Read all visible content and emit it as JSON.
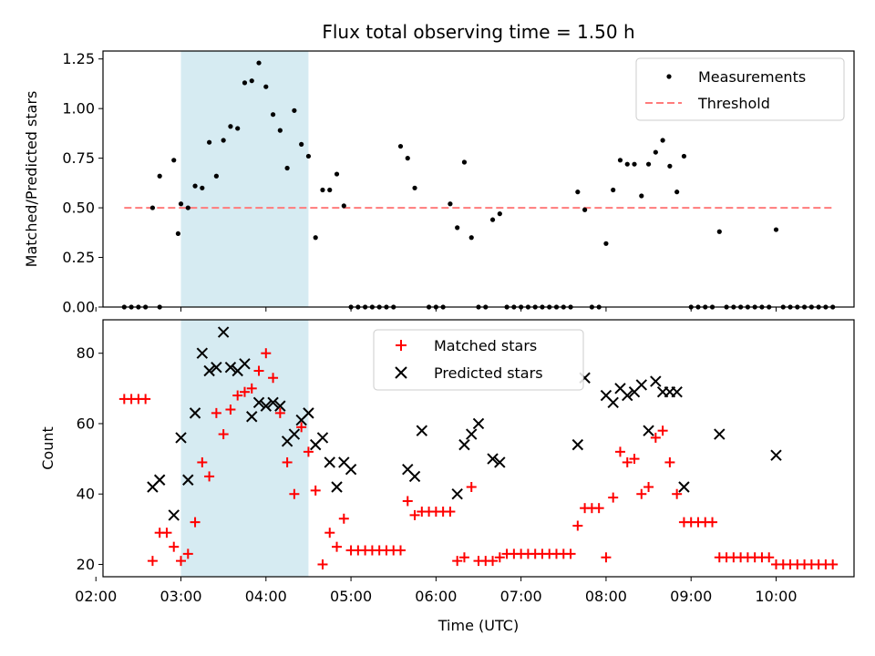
{
  "chart_data": [
    {
      "type": "scatter",
      "title": "Flux total observing time = 1.50 h",
      "xlabel": "",
      "ylabel": "Matched/Predicted stars",
      "xlim": [
        "02:05",
        "10:55"
      ],
      "ylim": [
        0,
        1.29
      ],
      "yticks": [
        "0.00",
        "0.25",
        "0.50",
        "0.75",
        "1.00",
        "1.25"
      ],
      "shaded_interval": [
        "03:00",
        "04:30"
      ],
      "legend_position": "top-right",
      "series": [
        {
          "name": "Measurements",
          "marker": "dot",
          "color": "#000000",
          "points": [
            [
              "02:20",
              0
            ],
            [
              "02:25",
              0
            ],
            [
              "02:30",
              0
            ],
            [
              "02:35",
              0
            ],
            [
              "02:45",
              0
            ],
            [
              "02:40",
              0.5
            ],
            [
              "02:45",
              0.66
            ],
            [
              "02:55",
              0.74
            ],
            [
              "02:58",
              0.37
            ],
            [
              "03:00",
              0.52
            ],
            [
              "03:05",
              0.5
            ],
            [
              "03:10",
              0.61
            ],
            [
              "03:15",
              0.6
            ],
            [
              "03:20",
              0.83
            ],
            [
              "03:25",
              0.66
            ],
            [
              "03:30",
              0.84
            ],
            [
              "03:35",
              0.91
            ],
            [
              "03:40",
              0.9
            ],
            [
              "03:45",
              1.13
            ],
            [
              "03:50",
              1.14
            ],
            [
              "03:55",
              1.23
            ],
            [
              "04:00",
              1.11
            ],
            [
              "04:05",
              0.97
            ],
            [
              "04:10",
              0.89
            ],
            [
              "04:15",
              0.7
            ],
            [
              "04:20",
              0.99
            ],
            [
              "04:25",
              0.82
            ],
            [
              "04:30",
              0.76
            ],
            [
              "04:35",
              0.35
            ],
            [
              "04:40",
              0.59
            ],
            [
              "04:45",
              0.59
            ],
            [
              "04:50",
              0.67
            ],
            [
              "04:55",
              0.51
            ],
            [
              "05:00",
              0
            ],
            [
              "05:05",
              0
            ],
            [
              "05:10",
              0
            ],
            [
              "05:15",
              0
            ],
            [
              "05:20",
              0
            ],
            [
              "05:25",
              0
            ],
            [
              "05:30",
              0
            ],
            [
              "05:35",
              0.81
            ],
            [
              "05:40",
              0.75
            ],
            [
              "05:45",
              0.6
            ],
            [
              "05:55",
              0
            ],
            [
              "06:00",
              0
            ],
            [
              "06:05",
              0
            ],
            [
              "06:10",
              0.52
            ],
            [
              "06:15",
              0.4
            ],
            [
              "06:20",
              0.73
            ],
            [
              "06:25",
              0.35
            ],
            [
              "06:30",
              0
            ],
            [
              "06:35",
              0
            ],
            [
              "06:40",
              0.44
            ],
            [
              "06:45",
              0.47
            ],
            [
              "06:50",
              0
            ],
            [
              "06:55",
              0
            ],
            [
              "07:00",
              0
            ],
            [
              "07:05",
              0
            ],
            [
              "07:10",
              0
            ],
            [
              "07:15",
              0
            ],
            [
              "07:20",
              0
            ],
            [
              "07:25",
              0
            ],
            [
              "07:30",
              0
            ],
            [
              "07:35",
              0
            ],
            [
              "07:40",
              0.58
            ],
            [
              "07:45",
              0.49
            ],
            [
              "07:50",
              0
            ],
            [
              "07:55",
              0
            ],
            [
              "08:00",
              0.32
            ],
            [
              "08:05",
              0.59
            ],
            [
              "08:10",
              0.74
            ],
            [
              "08:15",
              0.72
            ],
            [
              "08:20",
              0.72
            ],
            [
              "08:25",
              0.56
            ],
            [
              "08:30",
              0.72
            ],
            [
              "08:35",
              0.78
            ],
            [
              "08:40",
              0.84
            ],
            [
              "08:45",
              0.71
            ],
            [
              "08:50",
              0.58
            ],
            [
              "08:55",
              0.76
            ],
            [
              "09:00",
              0
            ],
            [
              "09:05",
              0
            ],
            [
              "09:10",
              0
            ],
            [
              "09:15",
              0
            ],
            [
              "09:20",
              0.38
            ],
            [
              "09:25",
              0
            ],
            [
              "09:30",
              0
            ],
            [
              "09:35",
              0
            ],
            [
              "09:40",
              0
            ],
            [
              "09:45",
              0
            ],
            [
              "09:50",
              0
            ],
            [
              "09:55",
              0
            ],
            [
              "10:00",
              0.39
            ],
            [
              "10:05",
              0
            ],
            [
              "10:10",
              0
            ],
            [
              "10:15",
              0
            ],
            [
              "10:20",
              0
            ],
            [
              "10:25",
              0
            ],
            [
              "10:30",
              0
            ],
            [
              "10:35",
              0
            ],
            [
              "10:40",
              0
            ]
          ]
        },
        {
          "name": "Threshold",
          "marker": "dashed-line",
          "color": "#ff7b7b",
          "points": [
            [
              "02:20",
              0.5
            ],
            [
              "10:40",
              0.5
            ]
          ]
        }
      ]
    },
    {
      "type": "scatter",
      "title": "",
      "xlabel": "Time (UTC)",
      "ylabel": "Count",
      "xlim": [
        "02:05",
        "10:55"
      ],
      "ylim": [
        16.5,
        89.5
      ],
      "xticks": [
        "02:00",
        "03:00",
        "04:00",
        "05:00",
        "06:00",
        "07:00",
        "08:00",
        "09:00",
        "10:00"
      ],
      "yticks": [
        "20",
        "40",
        "60",
        "80"
      ],
      "shaded_interval": [
        "03:00",
        "04:30"
      ],
      "legend_position": "top-center",
      "series": [
        {
          "name": "Matched stars",
          "marker": "plus",
          "color": "#ff0000",
          "points": [
            [
              "02:20",
              67
            ],
            [
              "02:25",
              67
            ],
            [
              "02:30",
              67
            ],
            [
              "02:35",
              67
            ],
            [
              "02:40",
              21
            ],
            [
              "02:45",
              29
            ],
            [
              "02:50",
              29
            ],
            [
              "02:55",
              25
            ],
            [
              "03:00",
              21
            ],
            [
              "03:05",
              23
            ],
            [
              "03:10",
              32
            ],
            [
              "03:15",
              49
            ],
            [
              "03:20",
              45
            ],
            [
              "03:25",
              63
            ],
            [
              "03:30",
              57
            ],
            [
              "03:35",
              64
            ],
            [
              "03:40",
              68
            ],
            [
              "03:45",
              69
            ],
            [
              "03:50",
              70
            ],
            [
              "03:55",
              75
            ],
            [
              "04:00",
              80
            ],
            [
              "04:05",
              73
            ],
            [
              "04:10",
              63
            ],
            [
              "04:15",
              49
            ],
            [
              "04:20",
              40
            ],
            [
              "04:25",
              59
            ],
            [
              "04:30",
              52
            ],
            [
              "04:35",
              41
            ],
            [
              "04:40",
              20
            ],
            [
              "04:45",
              29
            ],
            [
              "04:50",
              25
            ],
            [
              "04:55",
              33
            ],
            [
              "05:00",
              24
            ],
            [
              "05:05",
              24
            ],
            [
              "05:10",
              24
            ],
            [
              "05:15",
              24
            ],
            [
              "05:20",
              24
            ],
            [
              "05:25",
              24
            ],
            [
              "05:30",
              24
            ],
            [
              "05:35",
              24
            ],
            [
              "05:40",
              38
            ],
            [
              "05:45",
              34
            ],
            [
              "05:50",
              35
            ],
            [
              "05:55",
              35
            ],
            [
              "06:00",
              35
            ],
            [
              "06:05",
              35
            ],
            [
              "06:10",
              35
            ],
            [
              "06:15",
              21
            ],
            [
              "06:20",
              22
            ],
            [
              "06:25",
              42
            ],
            [
              "06:30",
              21
            ],
            [
              "06:35",
              21
            ],
            [
              "06:40",
              21
            ],
            [
              "06:45",
              22
            ],
            [
              "06:50",
              23
            ],
            [
              "06:55",
              23
            ],
            [
              "07:00",
              23
            ],
            [
              "07:05",
              23
            ],
            [
              "07:10",
              23
            ],
            [
              "07:15",
              23
            ],
            [
              "07:20",
              23
            ],
            [
              "07:25",
              23
            ],
            [
              "07:30",
              23
            ],
            [
              "07:35",
              23
            ],
            [
              "07:40",
              31
            ],
            [
              "07:45",
              36
            ],
            [
              "07:50",
              36
            ],
            [
              "07:55",
              36
            ],
            [
              "08:00",
              22
            ],
            [
              "08:05",
              39
            ],
            [
              "08:10",
              52
            ],
            [
              "08:15",
              49
            ],
            [
              "08:20",
              50
            ],
            [
              "08:25",
              40
            ],
            [
              "08:30",
              42
            ],
            [
              "08:35",
              56
            ],
            [
              "08:40",
              58
            ],
            [
              "08:45",
              49
            ],
            [
              "08:50",
              40
            ],
            [
              "08:55",
              32
            ],
            [
              "09:00",
              32
            ],
            [
              "09:05",
              32
            ],
            [
              "09:10",
              32
            ],
            [
              "09:15",
              32
            ],
            [
              "09:20",
              22
            ],
            [
              "09:25",
              22
            ],
            [
              "09:30",
              22
            ],
            [
              "09:35",
              22
            ],
            [
              "09:40",
              22
            ],
            [
              "09:45",
              22
            ],
            [
              "09:50",
              22
            ],
            [
              "09:55",
              22
            ],
            [
              "10:00",
              20
            ],
            [
              "10:05",
              20
            ],
            [
              "10:10",
              20
            ],
            [
              "10:15",
              20
            ],
            [
              "10:20",
              20
            ],
            [
              "10:25",
              20
            ],
            [
              "10:30",
              20
            ],
            [
              "10:35",
              20
            ],
            [
              "10:40",
              20
            ]
          ]
        },
        {
          "name": "Predicted stars",
          "marker": "x",
          "color": "#000000",
          "points": [
            [
              "02:40",
              42
            ],
            [
              "02:45",
              44
            ],
            [
              "02:55",
              34
            ],
            [
              "03:00",
              56
            ],
            [
              "03:05",
              44
            ],
            [
              "03:10",
              63
            ],
            [
              "03:15",
              80
            ],
            [
              "03:20",
              75
            ],
            [
              "03:25",
              76
            ],
            [
              "03:30",
              86
            ],
            [
              "03:35",
              76
            ],
            [
              "03:40",
              75
            ],
            [
              "03:45",
              77
            ],
            [
              "03:50",
              62
            ],
            [
              "03:55",
              66
            ],
            [
              "04:00",
              65
            ],
            [
              "04:05",
              66
            ],
            [
              "04:10",
              65
            ],
            [
              "04:15",
              55
            ],
            [
              "04:20",
              57
            ],
            [
              "04:25",
              61
            ],
            [
              "04:30",
              63
            ],
            [
              "04:35",
              54
            ],
            [
              "04:40",
              56
            ],
            [
              "04:45",
              49
            ],
            [
              "04:50",
              42
            ],
            [
              "04:55",
              49
            ],
            [
              "05:00",
              47
            ],
            [
              "05:40",
              47
            ],
            [
              "05:45",
              45
            ],
            [
              "05:50",
              58
            ],
            [
              "06:15",
              40
            ],
            [
              "06:20",
              54
            ],
            [
              "06:25",
              57
            ],
            [
              "06:30",
              60
            ],
            [
              "06:40",
              50
            ],
            [
              "06:45",
              49
            ],
            [
              "07:40",
              54
            ],
            [
              "07:45",
              73
            ],
            [
              "08:00",
              68
            ],
            [
              "08:05",
              66
            ],
            [
              "08:10",
              70
            ],
            [
              "08:15",
              68
            ],
            [
              "08:20",
              69
            ],
            [
              "08:25",
              71
            ],
            [
              "08:30",
              58
            ],
            [
              "08:35",
              72
            ],
            [
              "08:40",
              69
            ],
            [
              "08:45",
              69
            ],
            [
              "08:50",
              69
            ],
            [
              "08:55",
              42
            ],
            [
              "09:20",
              57
            ],
            [
              "10:00",
              51
            ]
          ]
        }
      ]
    }
  ],
  "colors": {
    "shade": "#add8e6",
    "matched": "#ff0000",
    "predicted": "#000000",
    "threshold": "#ff7b7b"
  }
}
